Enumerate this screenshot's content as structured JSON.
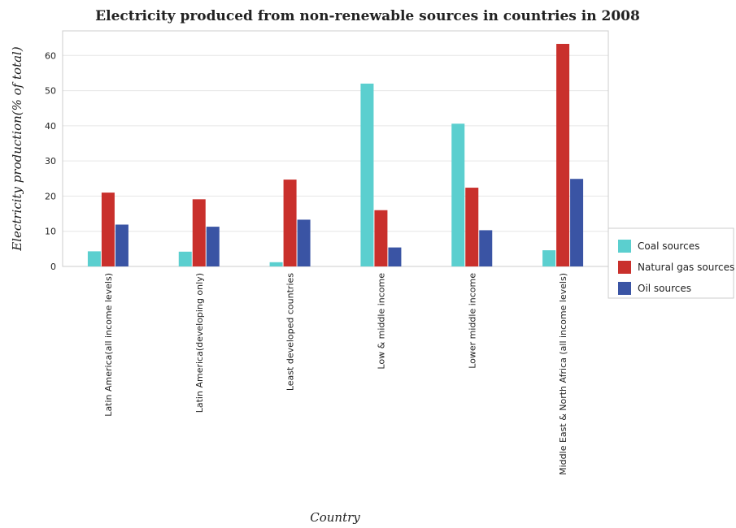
{
  "chart_data": {
    "type": "bar",
    "title": "Electricity produced from non-renewable sources in countries in 2008",
    "xlabel": "Country",
    "ylabel": "Electricity production(% of total)",
    "ylim": [
      0,
      67
    ],
    "yticks": [
      0,
      10,
      20,
      30,
      40,
      50,
      60
    ],
    "grid": true,
    "legend_position": "right",
    "categories": [
      "Latin America(all income levels)",
      "Latin America(developing only)",
      "Least developed countries",
      "Low & middle income",
      "Lower middle income",
      "Middle East & North Africa (all income levels)"
    ],
    "series": [
      {
        "name": "Coal sources",
        "color": "#5bcfcf",
        "values": [
          4.3,
          4.2,
          1.2,
          52.0,
          40.6,
          4.6
        ]
      },
      {
        "name": "Natural gas sources",
        "color": "#c9302c",
        "values": [
          21.0,
          19.1,
          24.7,
          16.0,
          22.4,
          63.3
        ]
      },
      {
        "name": "Oil sources",
        "color": "#3a54a4",
        "values": [
          11.9,
          11.3,
          13.3,
          5.4,
          10.3,
          24.9
        ]
      }
    ]
  }
}
